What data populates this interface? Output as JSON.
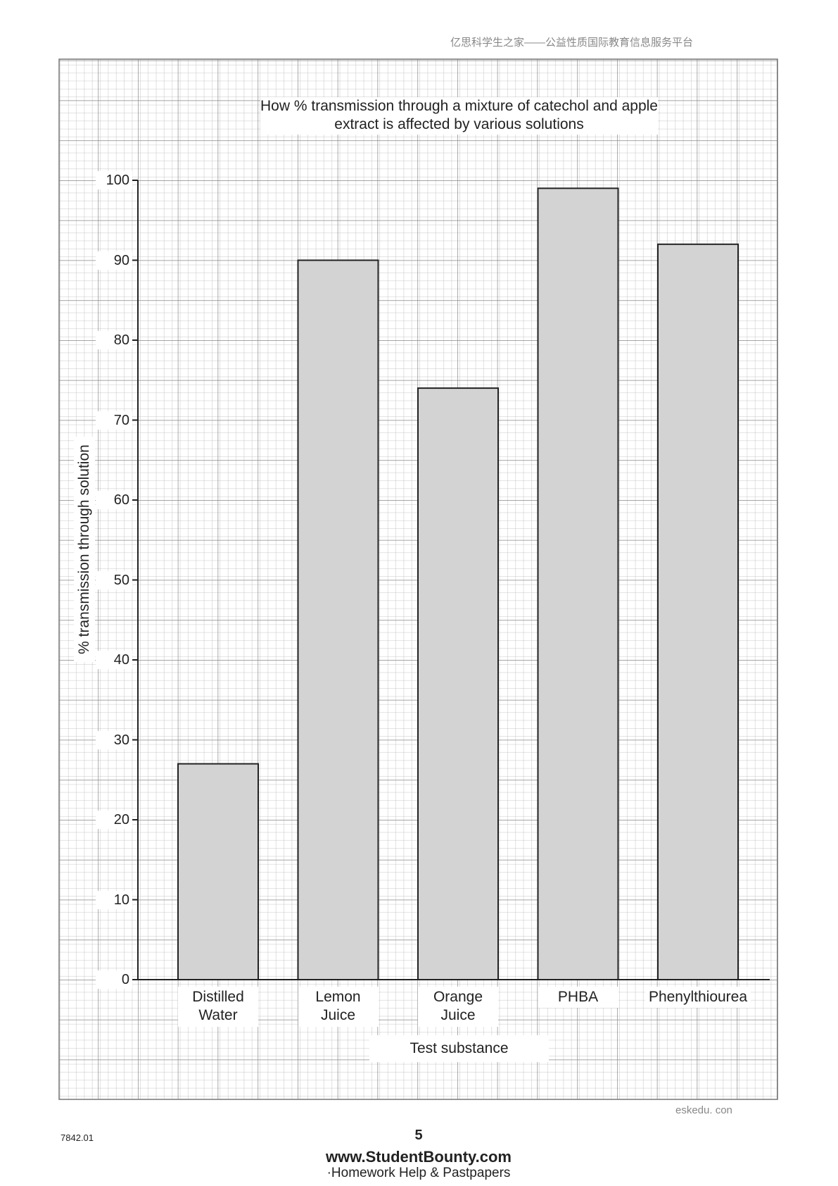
{
  "header": {
    "site": "亿思科学生之家——公益性质国际教育信息服务平台"
  },
  "chart_data": {
    "type": "bar",
    "title": "How % transmission through a mixture of catechol and apple extract is affected by various solutions",
    "x_label": "Test substance",
    "y_label": "% transmission through solution",
    "categories": [
      "Distilled Water",
      "Lemon Juice",
      "Orange Juice",
      "PHBA",
      "Phenylthiourea"
    ],
    "values": [
      27,
      90,
      74,
      99,
      92
    ],
    "color": "#d3d3d3",
    "ylim": [
      0,
      100
    ],
    "yticks": [
      0,
      10,
      20,
      30,
      40,
      50,
      60,
      70,
      80,
      90,
      100
    ],
    "grid": true
  },
  "footer": {
    "watermark": "eskedu. con",
    "code": "7842.01",
    "page": "5",
    "site": "www.StudentBounty.com",
    "tagline": "·Homework Help & Pastpapers"
  }
}
